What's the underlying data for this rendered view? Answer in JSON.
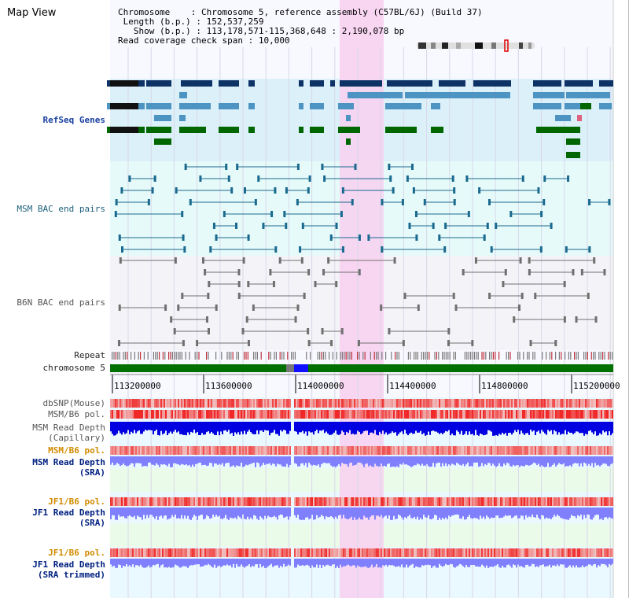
{
  "title": "Map View",
  "info": {
    "chromosome_label": "Chromosome",
    "chromosome_value": "Chromosome 5, reference assembly (C57BL/6J) (Build 37)",
    "length_label": "Length (b.p.)",
    "length_value": "152,537,259",
    "show_label": "Show (b.p.)",
    "show_value": "113,178,571-115,368,648 : 2,190,078 bp",
    "coverage_label": "Read coverage check span",
    "coverage_value": "10,000"
  },
  "tracks": {
    "refseq": "RefSeq Genes",
    "msm_bac": "MSM BAC end pairs",
    "b6n_bac": "B6N BAC end pairs",
    "repeat": "Repeat",
    "chromosome": "chromosome 5",
    "dbsnp": "dbSNP(Mouse)",
    "msm_b6_pol": "MSM/B6 pol.",
    "msm_depth_cap_1": "MSM Read Depth",
    "msm_depth_cap_2": "(Capillary)",
    "msm_b6_pol2": "MSM/B6 pol.",
    "msm_depth_sra_1": "MSM Read Depth",
    "msm_depth_sra_2": "(SRA)",
    "jf1_b6_pol": "JF1/B6 pol.",
    "jf1_depth_sra_1": "JF1 Read Depth",
    "jf1_depth_sra_2": "(SRA)",
    "jf1_b6_pol2": "JF1/B6 pol.",
    "jf1_depth_trim_1": "JF1 Read Depth",
    "jf1_depth_trim_2": "(SRA trimmed)"
  },
  "axis": {
    "ticks": [
      "113200000",
      "113600000",
      "114000000",
      "114400000",
      "114800000",
      "115200000"
    ]
  },
  "colors": {
    "highlight": "#f8d0f0",
    "refseq_bg": "#dcf0fa",
    "msm_bg": "#e6fafa",
    "gene_dark": "#0d3366",
    "gene_light": "#4d94c2",
    "gene_green": "#006600",
    "chromosome_green": "#007000",
    "msm_line": "#1a6a8f",
    "b6n_line": "#707070",
    "depth_blue": "#0000e0",
    "depth_light_blue": "#8080ff",
    "snp_red": "#f08080"
  }
}
